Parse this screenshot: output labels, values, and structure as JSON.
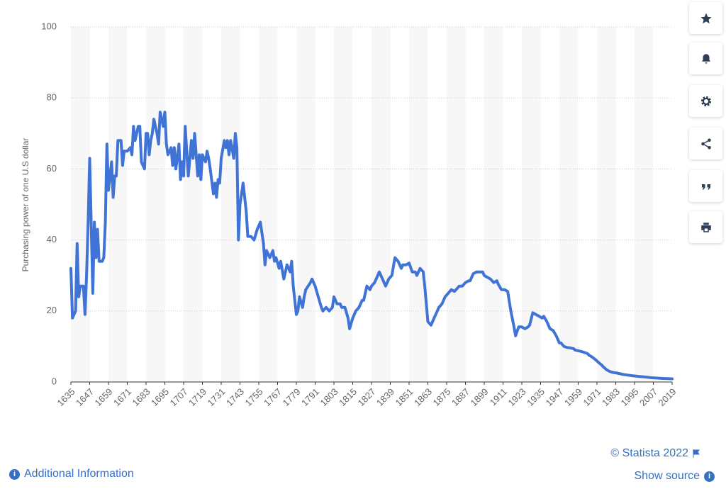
{
  "chart_data": {
    "type": "line",
    "y_label": "Purchasing power of one U.S dollar",
    "color": "#3f74d6",
    "x": [
      1635,
      1636,
      1638,
      1639,
      1640,
      1641,
      1643,
      1644,
      1645,
      1646,
      1647,
      1649,
      1650,
      1651,
      1652,
      1653,
      1655,
      1656,
      1657,
      1658,
      1659,
      1661,
      1662,
      1663,
      1664,
      1665,
      1667,
      1668,
      1669,
      1671,
      1673,
      1674,
      1675,
      1676,
      1678,
      1679,
      1680,
      1682,
      1683,
      1684,
      1685,
      1686,
      1687,
      1688,
      1690,
      1691,
      1692,
      1694,
      1695,
      1696,
      1697,
      1699,
      1700,
      1701,
      1702,
      1704,
      1705,
      1706,
      1707,
      1708,
      1710,
      1711,
      1712,
      1713,
      1714,
      1716,
      1717,
      1718,
      1719,
      1721,
      1722,
      1723,
      1724,
      1726,
      1727,
      1728,
      1729,
      1730,
      1731,
      1733,
      1734,
      1735,
      1736,
      1737,
      1739,
      1740,
      1741,
      1742,
      1743,
      1745,
      1747,
      1748,
      1750,
      1752,
      1754,
      1756,
      1758,
      1759,
      1760,
      1762,
      1764,
      1765,
      1766,
      1768,
      1769,
      1771,
      1773,
      1775,
      1776,
      1777,
      1779,
      1780,
      1781,
      1783,
      1784,
      1785,
      1788,
      1789,
      1791,
      1793,
      1795,
      1796,
      1798,
      1800,
      1802,
      1803,
      1805,
      1807,
      1808,
      1810,
      1812,
      1813,
      1815,
      1817,
      1819,
      1821,
      1822,
      1824,
      1826,
      1827,
      1829,
      1831,
      1832,
      1834,
      1836,
      1838,
      1840,
      1842,
      1844,
      1846,
      1847,
      1849,
      1851,
      1853,
      1855,
      1856,
      1858,
      1860,
      1861,
      1863,
      1865,
      1867,
      1869,
      1870,
      1872,
      1874,
      1876,
      1878,
      1880,
      1881,
      1883,
      1885,
      1887,
      1889,
      1890,
      1892,
      1894,
      1896,
      1898,
      1899,
      1901,
      1903,
      1905,
      1907,
      1908,
      1910,
      1912,
      1914,
      1916,
      1918,
      1919,
      1921,
      1923,
      1925,
      1927,
      1928,
      1930,
      1932,
      1934,
      1936,
      1937,
      1939,
      1941,
      1943,
      1945,
      1947,
      1948,
      1950,
      1952,
      1954,
      1956,
      1957,
      1959,
      1961,
      1963,
      1965,
      1966,
      1968,
      1970,
      1972,
      1974,
      1975,
      1977,
      1979,
      1981,
      1984,
      1988,
      1993,
      1997,
      2002,
      2006,
      2013,
      2019
    ],
    "values": [
      32,
      18,
      20,
      39,
      24,
      27,
      27,
      19,
      30,
      45,
      63,
      25,
      45,
      35,
      43,
      34,
      34,
      35,
      45,
      67,
      54,
      62,
      52,
      58,
      58,
      68,
      68,
      61,
      65,
      65,
      66,
      64,
      72,
      68,
      72,
      72,
      62,
      60,
      70,
      70,
      64,
      68,
      70,
      74,
      70,
      67,
      76,
      72,
      76,
      67,
      64,
      66,
      61,
      66,
      60,
      67,
      57,
      62,
      58,
      72,
      58,
      63,
      68,
      63,
      70,
      58,
      64,
      57,
      64,
      62,
      65,
      63,
      60,
      53,
      56,
      52,
      57,
      56,
      63,
      68,
      66,
      68,
      64,
      68,
      63,
      70,
      66,
      40,
      50,
      56,
      48,
      41,
      41,
      40,
      43,
      45,
      39,
      33,
      37,
      35,
      37,
      34,
      35,
      32,
      34,
      29,
      33,
      31,
      34,
      27,
      19,
      20,
      24,
      21,
      24,
      26,
      28,
      29,
      27,
      24,
      21,
      20,
      21,
      20,
      21,
      24,
      22,
      22,
      21,
      21,
      18,
      15,
      18,
      20,
      21,
      23,
      23,
      27,
      26,
      27,
      28,
      30,
      31,
      29,
      27,
      29,
      30,
      35,
      34,
      32,
      33,
      33,
      33.5,
      31,
      31,
      30,
      32,
      31,
      27,
      17,
      16,
      18,
      20,
      21,
      22,
      24,
      25,
      26,
      25.5,
      26,
      27,
      27,
      28,
      28.5,
      28.5,
      30.5,
      31,
      31,
      31,
      30,
      29.5,
      29,
      28,
      28.5,
      27.5,
      26,
      26,
      25.5,
      20,
      15.5,
      13,
      15.5,
      15.5,
      15,
      15.5,
      16,
      19.5,
      19,
      18.5,
      18,
      18.5,
      17,
      15,
      14.5,
      13,
      11,
      11,
      10,
      9.7,
      9.6,
      9.4,
      9,
      8.8,
      8.6,
      8.3,
      8,
      7.5,
      7,
      6.3,
      5.5,
      4.8,
      4.3,
      3.5,
      3,
      2.7,
      2.5,
      2.1,
      1.8,
      1.6,
      1.4,
      1.2,
      1.0,
      0.9
    ],
    "xlim": [
      1635,
      2019
    ],
    "xticks": [
      1635,
      1647,
      1659,
      1671,
      1683,
      1695,
      1707,
      1719,
      1731,
      1743,
      1755,
      1767,
      1779,
      1791,
      1803,
      1815,
      1827,
      1839,
      1851,
      1863,
      1875,
      1887,
      1899,
      1911,
      1923,
      1935,
      1947,
      1959,
      1971,
      1983,
      1995,
      2007,
      2019
    ],
    "ylim": [
      0,
      100
    ],
    "yticks": [
      0,
      20,
      40,
      60,
      80,
      100
    ],
    "grid": true
  },
  "footer": {
    "copyright": "© Statista 2022",
    "show_source": "Show source",
    "additional_info": "Additional Information"
  }
}
